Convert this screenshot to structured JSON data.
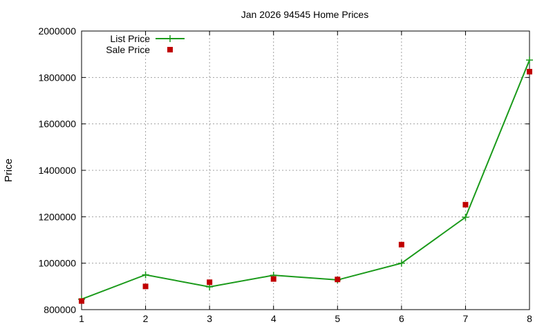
{
  "chart_data": {
    "type": "line",
    "title": "Jan 2026 94545 Home Prices",
    "xlabel": "",
    "ylabel": "Price",
    "x": [
      1,
      2,
      3,
      4,
      5,
      6,
      7,
      8
    ],
    "xlim": [
      1,
      8
    ],
    "ylim": [
      800000,
      2000000
    ],
    "xticks": [
      "1",
      "2",
      "3",
      "4",
      "5",
      "6",
      "7",
      "8"
    ],
    "yticks": [
      "800000",
      "1000000",
      "1200000",
      "1400000",
      "1600000",
      "1800000",
      "2000000"
    ],
    "grid": true,
    "legend_position": "top-left",
    "series": [
      {
        "name": "List Price",
        "style": "line+crosses",
        "color": "#1a9a1a",
        "values": [
          845000,
          950000,
          898000,
          948000,
          928000,
          1000000,
          1198000,
          1875000
        ]
      },
      {
        "name": "Sale Price",
        "style": "squares",
        "color": "#c00000",
        "values": [
          837000,
          900000,
          918000,
          932000,
          930000,
          1080000,
          1252000,
          1825000
        ]
      }
    ]
  }
}
